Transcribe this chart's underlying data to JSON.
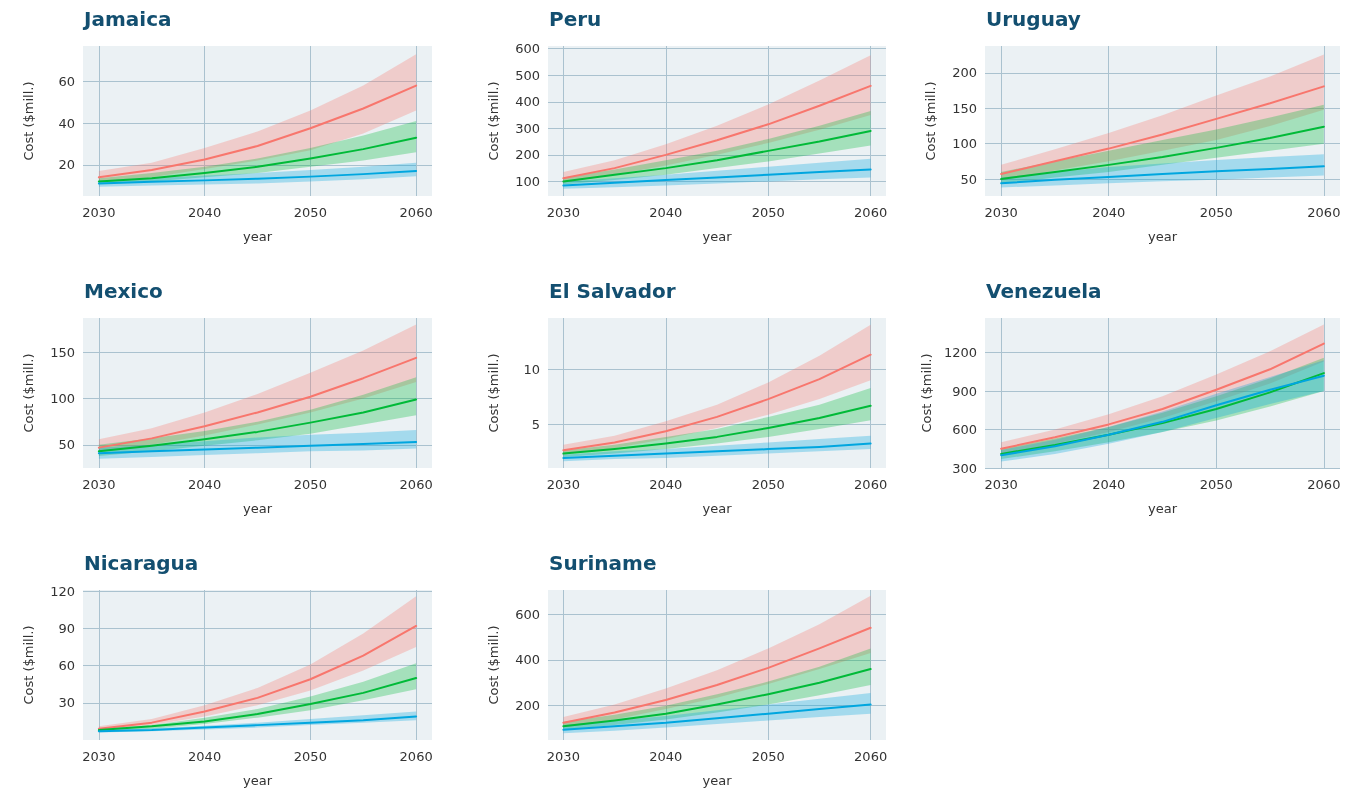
{
  "chart_data": [
    {
      "type": "line",
      "title": "Jamaica",
      "xlabel": "year",
      "ylabel": "Cost ($mill.)",
      "x": [
        2030,
        2035,
        2040,
        2045,
        2050,
        2055,
        2060
      ],
      "xlim": [
        2028.5,
        2061.5
      ],
      "xticks": [
        2030,
        2040,
        2050,
        2060
      ],
      "ylim": [
        5,
        77
      ],
      "yticks": [
        20,
        40,
        60
      ],
      "grid": true,
      "series": [
        {
          "color": "#f8766d",
          "values": [
            14,
            17.5,
            22.5,
            29,
            37.5,
            47,
            58
          ],
          "lower": [
            12,
            14,
            18,
            22,
            27,
            35,
            46
          ],
          "upper": [
            17,
            21,
            28,
            36,
            46,
            58,
            73
          ]
        },
        {
          "color": "#00ba38",
          "values": [
            12,
            13.5,
            16,
            19,
            23,
            27.5,
            33
          ],
          "lower": [
            11,
            12,
            14,
            16,
            19,
            22,
            26
          ],
          "upper": [
            13.5,
            16,
            19,
            23,
            28,
            34,
            41
          ]
        },
        {
          "color": "#00a6df",
          "values": [
            11,
            11.8,
            12.5,
            13.3,
            14.3,
            15.5,
            17
          ],
          "lower": [
            9.5,
            10,
            10.5,
            11,
            12,
            13,
            14.5
          ],
          "upper": [
            12.5,
            13.5,
            14.8,
            16,
            17.5,
            19,
            21
          ]
        }
      ]
    },
    {
      "type": "line",
      "title": "Peru",
      "xlabel": "year",
      "ylabel": "Cost ($mill.)",
      "x": [
        2030,
        2035,
        2040,
        2045,
        2050,
        2055,
        2060
      ],
      "xlim": [
        2028.5,
        2061.5
      ],
      "xticks": [
        2030,
        2040,
        2050,
        2060
      ],
      "ylim": [
        45,
        610
      ],
      "yticks": [
        100,
        200,
        300,
        400,
        500,
        600
      ],
      "grid": true,
      "series": [
        {
          "color": "#f8766d",
          "values": [
            112,
            150,
            200,
            255,
            315,
            385,
            460
          ],
          "lower": [
            95,
            125,
            160,
            200,
            245,
            295,
            350
          ],
          "upper": [
            135,
            180,
            240,
            310,
            390,
            480,
            575
          ]
        },
        {
          "color": "#00ba38",
          "values": [
            100,
            125,
            150,
            180,
            215,
            250,
            290
          ],
          "lower": [
            88,
            105,
            125,
            150,
            175,
            205,
            235
          ],
          "upper": [
            115,
            145,
            180,
            215,
            260,
            310,
            365
          ]
        },
        {
          "color": "#00a6df",
          "values": [
            85,
            95,
            105,
            115,
            125,
            135,
            145
          ],
          "lower": [
            72,
            78,
            85,
            92,
            100,
            108,
            115
          ],
          "upper": [
            100,
            112,
            125,
            140,
            155,
            170,
            185
          ]
        }
      ]
    },
    {
      "type": "line",
      "title": "Uruguay",
      "xlabel": "year",
      "ylabel": "Cost ($mill.)",
      "x": [
        2030,
        2035,
        2040,
        2045,
        2050,
        2055,
        2060
      ],
      "xlim": [
        2028.5,
        2061.5
      ],
      "xticks": [
        2030,
        2040,
        2050,
        2060
      ],
      "ylim": [
        26,
        238
      ],
      "yticks": [
        50,
        100,
        150,
        200
      ],
      "grid": true,
      "series": [
        {
          "color": "#f8766d",
          "values": [
            57,
            75,
            93,
            113,
            135,
            157,
            181
          ],
          "lower": [
            48,
            62,
            75,
            90,
            105,
            125,
            148
          ],
          "upper": [
            70,
            92,
            115,
            140,
            168,
            195,
            226
          ]
        },
        {
          "color": "#00ba38",
          "values": [
            50,
            60,
            70,
            81,
            94,
            108,
            124
          ],
          "lower": [
            43,
            52,
            60,
            70,
            80,
            90,
            100
          ],
          "upper": [
            60,
            75,
            90,
            105,
            120,
            137,
            155
          ]
        },
        {
          "color": "#00a6df",
          "values": [
            44,
            49,
            53,
            57,
            61,
            64,
            68
          ],
          "lower": [
            38,
            41,
            44,
            47,
            49,
            52,
            55
          ],
          "upper": [
            52,
            60,
            67,
            72,
            77,
            81,
            85
          ]
        }
      ]
    },
    {
      "type": "line",
      "title": "Mexico",
      "xlabel": "year",
      "ylabel": "Cost ($mill.)",
      "x": [
        2030,
        2035,
        2040,
        2045,
        2050,
        2055,
        2060
      ],
      "xlim": [
        2028.5,
        2061.5
      ],
      "xticks": [
        2030,
        2040,
        2050,
        2060
      ],
      "ylim": [
        25,
        187
      ],
      "yticks": [
        50,
        100,
        150
      ],
      "grid": true,
      "series": [
        {
          "color": "#f8766d",
          "values": [
            47,
            57,
            70,
            85,
            102,
            122,
            144
          ],
          "lower": [
            42,
            50,
            60,
            72,
            85,
            100,
            118
          ],
          "upper": [
            56,
            68,
            85,
            105,
            128,
            152,
            180
          ]
        },
        {
          "color": "#00ba38",
          "values": [
            43,
            49,
            56,
            64,
            74,
            85,
            99
          ],
          "lower": [
            38,
            43,
            49,
            55,
            62,
            72,
            82
          ],
          "upper": [
            50,
            57,
            65,
            75,
            88,
            104,
            123
          ]
        },
        {
          "color": "#00a6df",
          "values": [
            41,
            43,
            45,
            47,
            49,
            51,
            53
          ],
          "lower": [
            35,
            37,
            39,
            41,
            43,
            44,
            46
          ],
          "upper": [
            47,
            50,
            54,
            58,
            61,
            63,
            66
          ]
        }
      ]
    },
    {
      "type": "line",
      "title": "El Salvador",
      "xlabel": "year",
      "ylabel": "Cost ($mill.)",
      "x": [
        2030,
        2035,
        2040,
        2045,
        2050,
        2055,
        2060
      ],
      "xlim": [
        2028.5,
        2061.5
      ],
      "xticks": [
        2030,
        2040,
        2050,
        2060
      ],
      "ylim": [
        1.1,
        14.6
      ],
      "yticks": [
        5,
        10
      ],
      "grid": true,
      "series": [
        {
          "color": "#f8766d",
          "values": [
            2.7,
            3.4,
            4.4,
            5.7,
            7.3,
            9.1,
            11.3
          ],
          "lower": [
            2.3,
            2.9,
            3.7,
            4.7,
            5.9,
            7.3,
            9.0
          ],
          "upper": [
            3.2,
            4.0,
            5.3,
            6.8,
            8.8,
            11.2,
            14.0
          ]
        },
        {
          "color": "#00ba38",
          "values": [
            2.4,
            2.8,
            3.3,
            3.9,
            4.7,
            5.6,
            6.7
          ],
          "lower": [
            2.1,
            2.4,
            2.8,
            3.3,
            3.9,
            4.6,
            5.4
          ],
          "upper": [
            2.7,
            3.2,
            3.9,
            4.6,
            5.7,
            6.8,
            8.3
          ]
        },
        {
          "color": "#00a6df",
          "values": [
            2.0,
            2.2,
            2.4,
            2.6,
            2.8,
            3.0,
            3.3
          ],
          "lower": [
            1.7,
            1.9,
            2.0,
            2.2,
            2.4,
            2.6,
            2.8
          ],
          "upper": [
            2.3,
            2.6,
            2.8,
            3.1,
            3.4,
            3.7,
            4.0
          ]
        }
      ]
    },
    {
      "type": "line",
      "title": "Venezuela",
      "xlabel": "year",
      "ylabel": "Cost ($mill.)",
      "x": [
        2030,
        2035,
        2040,
        2045,
        2050,
        2055,
        2060
      ],
      "xlim": [
        2028.5,
        2061.5
      ],
      "xticks": [
        2030,
        2040,
        2050,
        2060
      ],
      "ylim": [
        300,
        1470
      ],
      "yticks": [
        300,
        600,
        900,
        1200
      ],
      "grid": true,
      "series": [
        {
          "color": "#f8766d",
          "values": [
            450,
            540,
            640,
            760,
            910,
            1070,
            1270
          ],
          "lower": [
            410,
            490,
            580,
            690,
            820,
            960,
            1130
          ],
          "upper": [
            500,
            600,
            720,
            860,
            1030,
            1210,
            1420
          ]
        },
        {
          "color": "#00ba38",
          "values": [
            410,
            480,
            560,
            650,
            760,
            890,
            1040
          ],
          "lower": [
            370,
            430,
            500,
            580,
            670,
            780,
            900
          ],
          "upper": [
            450,
            530,
            620,
            730,
            860,
            1000,
            1160
          ]
        },
        {
          "color": "#00a6df",
          "values": [
            400,
            470,
            560,
            660,
            790,
            910,
            1020
          ],
          "lower": [
            350,
            410,
            490,
            580,
            690,
            800,
            900
          ],
          "upper": [
            440,
            520,
            620,
            740,
            880,
            1010,
            1140
          ]
        }
      ]
    },
    {
      "type": "line",
      "title": "Nicaragua",
      "xlabel": "year",
      "ylabel": "Cost ($mill.)",
      "x": [
        2030,
        2035,
        2040,
        2045,
        2050,
        2055,
        2060
      ],
      "xlim": [
        2028.5,
        2061.5
      ],
      "xticks": [
        2030,
        2040,
        2050,
        2060
      ],
      "ylim": [
        0,
        121
      ],
      "yticks": [
        30,
        60,
        90,
        120
      ],
      "grid": true,
      "series": [
        {
          "color": "#f8766d",
          "values": [
            9,
            14,
            23,
            34,
            49,
            68,
            92
          ],
          "lower": [
            8,
            12,
            19,
            28,
            40,
            56,
            75
          ],
          "upper": [
            11,
            17,
            28,
            42,
            61,
            86,
            116
          ]
        },
        {
          "color": "#00ba38",
          "values": [
            8,
            11,
            15,
            21,
            29,
            38,
            50
          ],
          "lower": [
            7,
            9,
            13,
            18,
            24,
            32,
            41
          ],
          "upper": [
            9,
            12,
            18,
            25,
            35,
            47,
            62
          ]
        },
        {
          "color": "#00a6df",
          "values": [
            7,
            8,
            10,
            12,
            14,
            16,
            19
          ],
          "lower": [
            6,
            7,
            8.5,
            10,
            12,
            14,
            16
          ],
          "upper": [
            8,
            9.5,
            11.5,
            14,
            17,
            20,
            23
          ]
        }
      ]
    },
    {
      "type": "line",
      "title": "Suriname",
      "xlabel": "year",
      "ylabel": "Cost ($mill.)",
      "x": [
        2030,
        2035,
        2040,
        2045,
        2050,
        2055,
        2060
      ],
      "xlim": [
        2028.5,
        2061.5
      ],
      "xticks": [
        2030,
        2040,
        2050,
        2060
      ],
      "ylim": [
        50,
        705
      ],
      "yticks": [
        200,
        400,
        600
      ],
      "grid": true,
      "series": [
        {
          "color": "#f8766d",
          "values": [
            125,
            170,
            225,
            290,
            365,
            450,
            540
          ],
          "lower": [
            105,
            140,
            185,
            235,
            295,
            360,
            430
          ],
          "upper": [
            150,
            205,
            275,
            355,
            450,
            555,
            680
          ]
        },
        {
          "color": "#00ba38",
          "values": [
            110,
            135,
            165,
            205,
            250,
            300,
            360
          ],
          "lower": [
            95,
            115,
            140,
            170,
            205,
            245,
            290
          ],
          "upper": [
            130,
            160,
            200,
            250,
            305,
            370,
            450
          ]
        },
        {
          "color": "#00a6df",
          "values": [
            95,
            110,
            125,
            145,
            165,
            185,
            205
          ],
          "lower": [
            80,
            90,
            105,
            120,
            135,
            150,
            165
          ],
          "upper": [
            115,
            135,
            155,
            180,
            205,
            230,
            255
          ]
        }
      ]
    }
  ]
}
